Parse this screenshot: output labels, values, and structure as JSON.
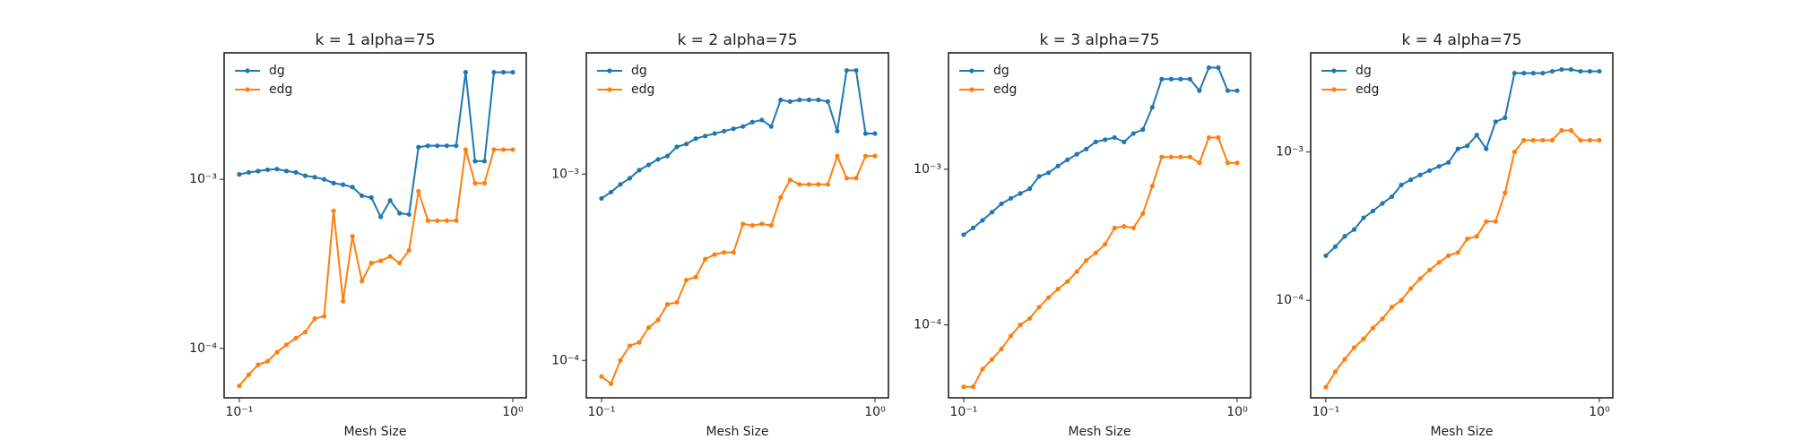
{
  "chart_data": [
    {
      "type": "line",
      "title": "k = 1 alpha=75",
      "xlabel": "Mesh Size",
      "xscale": "log",
      "yscale": "log",
      "legend": "upper left",
      "grid": false,
      "x": [
        0.1,
        0.1083,
        0.1172,
        0.1269,
        0.1374,
        0.1487,
        0.161,
        0.1743,
        0.1887,
        0.2043,
        0.2212,
        0.2395,
        0.2593,
        0.2807,
        0.3039,
        0.329,
        0.3562,
        0.3857,
        0.4175,
        0.452,
        0.4894,
        0.5298,
        0.5736,
        0.621,
        0.6723,
        0.7279,
        0.788,
        0.8532,
        0.9237,
        1.0
      ],
      "xlim": [
        0.088,
        1.12
      ],
      "xticks": [
        {
          "value": 0.1,
          "label": "10⁻¹"
        },
        {
          "value": 1,
          "label": "10⁰"
        }
      ],
      "ylim": [
        5.1e-05,
        0.0056
      ],
      "yticks": [
        {
          "value": 0.0001,
          "label": "10⁻⁴"
        },
        {
          "value": 0.001,
          "label": "10⁻³"
        }
      ],
      "series": [
        {
          "name": "dg",
          "color": "#1f77b4",
          "values": [
            0.00107,
            0.0011,
            0.00112,
            0.00114,
            0.00115,
            0.00112,
            0.0011,
            0.00105,
            0.00103,
            0.001,
            0.00095,
            0.00093,
            0.0009,
            0.0008,
            0.00078,
            0.0006,
            0.00075,
            0.00063,
            0.00062,
            0.00155,
            0.00158,
            0.00158,
            0.00158,
            0.00158,
            0.0043,
            0.00128,
            0.00128,
            0.0043,
            0.0043,
            0.0043
          ]
        },
        {
          "name": "edg",
          "color": "#ff7f0e",
          "values": [
            6e-05,
            7e-05,
            8e-05,
            8.4e-05,
            9.5e-05,
            0.000105,
            0.000115,
            0.000125,
            0.00015,
            0.000155,
            0.00065,
            0.00019,
            0.00046,
            0.00025,
            0.00032,
            0.00033,
            0.00035,
            0.00032,
            0.00038,
            0.00085,
            0.00057,
            0.00057,
            0.00057,
            0.00057,
            0.0015,
            0.00095,
            0.00095,
            0.0015,
            0.0015,
            0.0015
          ]
        }
      ]
    },
    {
      "type": "line",
      "title": "k = 2 alpha=75",
      "xlabel": "Mesh Size",
      "xscale": "log",
      "yscale": "log",
      "legend": "upper left",
      "grid": false,
      "x": [
        0.1,
        0.1083,
        0.1172,
        0.1269,
        0.1374,
        0.1487,
        0.161,
        0.1743,
        0.1887,
        0.2043,
        0.2212,
        0.2395,
        0.2593,
        0.2807,
        0.3039,
        0.329,
        0.3562,
        0.3857,
        0.4175,
        0.452,
        0.4894,
        0.5298,
        0.5736,
        0.621,
        0.6723,
        0.7279,
        0.788,
        0.8532,
        0.9237,
        1.0
      ],
      "xlim": [
        0.088,
        1.12
      ],
      "xticks": [
        {
          "value": 0.1,
          "label": "10⁻¹"
        },
        {
          "value": 1,
          "label": "10⁰"
        }
      ],
      "ylim": [
        6.3e-05,
        0.00447
      ],
      "yticks": [
        {
          "value": 0.0001,
          "label": "10⁻⁴"
        },
        {
          "value": 0.001,
          "label": "10⁻³"
        }
      ],
      "series": [
        {
          "name": "dg",
          "color": "#1f77b4",
          "values": [
            0.00074,
            0.0008,
            0.00088,
            0.00095,
            0.00105,
            0.00112,
            0.0012,
            0.00125,
            0.0014,
            0.00145,
            0.00155,
            0.0016,
            0.00165,
            0.0017,
            0.00175,
            0.0018,
            0.0019,
            0.00195,
            0.0018,
            0.0025,
            0.00245,
            0.0025,
            0.0025,
            0.0025,
            0.00245,
            0.0017,
            0.0036,
            0.0036,
            0.00165,
            0.00165
          ]
        },
        {
          "name": "edg",
          "color": "#ff7f0e",
          "values": [
            8.2e-05,
            7.5e-05,
            0.0001,
            0.00012,
            0.000125,
            0.00015,
            0.000165,
            0.0002,
            0.000205,
            0.00027,
            0.00028,
            0.00035,
            0.00037,
            0.00038,
            0.00038,
            0.00054,
            0.00053,
            0.00054,
            0.00053,
            0.00075,
            0.00093,
            0.00088,
            0.00088,
            0.00088,
            0.00088,
            0.00125,
            0.00095,
            0.00095,
            0.00125,
            0.00125
          ]
        }
      ]
    },
    {
      "type": "line",
      "title": "k = 3 alpha=75",
      "xlabel": "Mesh Size",
      "xscale": "log",
      "yscale": "log",
      "legend": "upper left",
      "grid": false,
      "x": [
        0.1,
        0.1083,
        0.1172,
        0.1269,
        0.1374,
        0.1487,
        0.161,
        0.1743,
        0.1887,
        0.2043,
        0.2212,
        0.2395,
        0.2593,
        0.2807,
        0.3039,
        0.329,
        0.3562,
        0.3857,
        0.4175,
        0.452,
        0.4894,
        0.5298,
        0.5736,
        0.621,
        0.6723,
        0.7279,
        0.788,
        0.8532,
        0.9237,
        1.0
      ],
      "xlim": [
        0.088,
        1.12
      ],
      "xticks": [
        {
          "value": 0.1,
          "label": "10⁻¹"
        },
        {
          "value": 1,
          "label": "10⁰"
        }
      ],
      "ylim": [
        3.4e-05,
        0.0056
      ],
      "yticks": [
        {
          "value": 0.0001,
          "label": "10⁻⁴"
        },
        {
          "value": 0.001,
          "label": "10⁻³"
        }
      ],
      "series": [
        {
          "name": "dg",
          "color": "#1f77b4",
          "values": [
            0.00038,
            0.00042,
            0.00047,
            0.00053,
            0.0006,
            0.00065,
            0.0007,
            0.00075,
            0.0009,
            0.00095,
            0.00105,
            0.00115,
            0.00125,
            0.00135,
            0.0015,
            0.00155,
            0.0016,
            0.0015,
            0.0017,
            0.0018,
            0.0025,
            0.0038,
            0.0038,
            0.0038,
            0.0038,
            0.0032,
            0.0045,
            0.0045,
            0.0032,
            0.0032
          ]
        },
        {
          "name": "edg",
          "color": "#ff7f0e",
          "values": [
            4e-05,
            4e-05,
            5.2e-05,
            6e-05,
            7e-05,
            8.5e-05,
            0.0001,
            0.00011,
            0.00013,
            0.00015,
            0.00017,
            0.00019,
            0.00022,
            0.00026,
            0.00029,
            0.00033,
            0.00042,
            0.00043,
            0.00042,
            0.00052,
            0.00078,
            0.0012,
            0.0012,
            0.0012,
            0.0012,
            0.0011,
            0.0016,
            0.0016,
            0.0011,
            0.0011
          ]
        }
      ]
    },
    {
      "type": "line",
      "title": "k = 4 alpha=75",
      "xlabel": "Mesh Size",
      "xscale": "log",
      "yscale": "log",
      "legend": "upper left",
      "grid": false,
      "x": [
        0.1,
        0.1083,
        0.1172,
        0.1269,
        0.1374,
        0.1487,
        0.161,
        0.1743,
        0.1887,
        0.2043,
        0.2212,
        0.2395,
        0.2593,
        0.2807,
        0.3039,
        0.329,
        0.3562,
        0.3857,
        0.4175,
        0.452,
        0.4894,
        0.5298,
        0.5736,
        0.621,
        0.6723,
        0.7279,
        0.788,
        0.8532,
        0.9237,
        1.0
      ],
      "xlim": [
        0.088,
        1.12
      ],
      "xticks": [
        {
          "value": 0.1,
          "label": "10⁻¹"
        },
        {
          "value": 1,
          "label": "10⁰"
        }
      ],
      "ylim": [
        2.2e-05,
        0.00466
      ],
      "yticks": [
        {
          "value": 0.0001,
          "label": "10⁻⁴"
        },
        {
          "value": 0.001,
          "label": "10⁻³"
        }
      ],
      "series": [
        {
          "name": "dg",
          "color": "#1f77b4",
          "values": [
            0.0002,
            0.00023,
            0.00027,
            0.0003,
            0.00036,
            0.0004,
            0.00045,
            0.0005,
            0.0006,
            0.00065,
            0.0007,
            0.00075,
            0.0008,
            0.00085,
            0.00105,
            0.0011,
            0.0013,
            0.00105,
            0.0016,
            0.0017,
            0.0034,
            0.0034,
            0.0034,
            0.0034,
            0.0035,
            0.0036,
            0.0036,
            0.0035,
            0.0035,
            0.0035
          ]
        },
        {
          "name": "edg",
          "color": "#ff7f0e",
          "values": [
            2.6e-05,
            3.3e-05,
            4e-05,
            4.8e-05,
            5.5e-05,
            6.5e-05,
            7.5e-05,
            9e-05,
            0.0001,
            0.00012,
            0.00014,
            0.00016,
            0.00018,
            0.0002,
            0.00021,
            0.00026,
            0.00027,
            0.00034,
            0.00034,
            0.00053,
            0.001,
            0.0012,
            0.0012,
            0.0012,
            0.0012,
            0.0014,
            0.0014,
            0.0012,
            0.0012,
            0.0012
          ]
        }
      ]
    }
  ]
}
